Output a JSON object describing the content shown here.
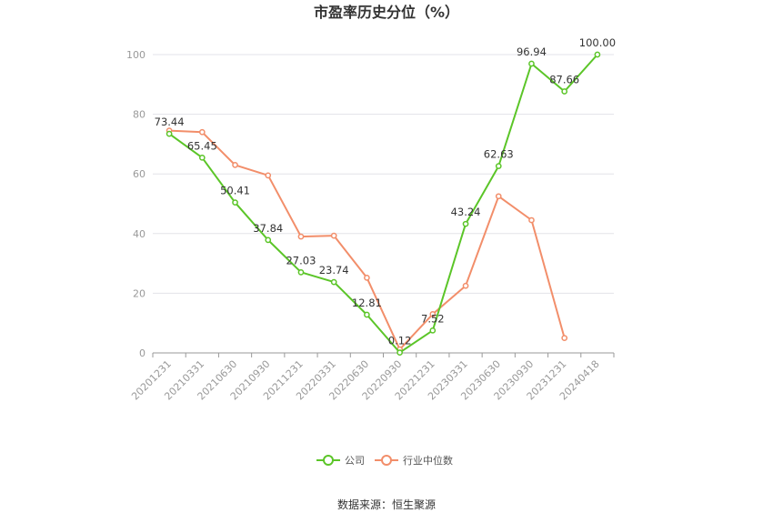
{
  "title": "市盈率历史分位（%）",
  "source": "数据来源：恒生聚源",
  "chart_data": {
    "type": "line",
    "title": "市盈率历史分位（%）",
    "xlabel": "",
    "ylabel": "",
    "ylim": [
      0,
      100
    ],
    "yticks": [
      0,
      20,
      40,
      60,
      80,
      100
    ],
    "grid": true,
    "legend_position": "bottom",
    "categories": [
      "20201231",
      "20210331",
      "20210630",
      "20210930",
      "20211231",
      "20220331",
      "20220630",
      "20220930",
      "20221231",
      "20230331",
      "20230630",
      "20230930",
      "20231231",
      "20240418"
    ],
    "series": [
      {
        "name": "公司",
        "color": "#5bc528",
        "values": [
          73.44,
          65.45,
          50.41,
          37.84,
          27.03,
          23.74,
          12.81,
          0.12,
          7.52,
          43.24,
          62.63,
          96.94,
          87.66,
          100.0
        ],
        "labels": [
          "73.44",
          "65.45",
          "50.41",
          "37.84",
          "27.03",
          "23.74",
          "12.81",
          "0.12",
          "7.52",
          "43.24",
          "62.63",
          "96.94",
          "87.66",
          "100.00"
        ]
      },
      {
        "name": "行业中位数",
        "color": "#f28e6a",
        "values": [
          74.5,
          74.0,
          63.0,
          59.5,
          39.0,
          39.3,
          25.2,
          1.2,
          13.0,
          22.5,
          52.5,
          44.5,
          5.0,
          null
        ]
      }
    ]
  }
}
